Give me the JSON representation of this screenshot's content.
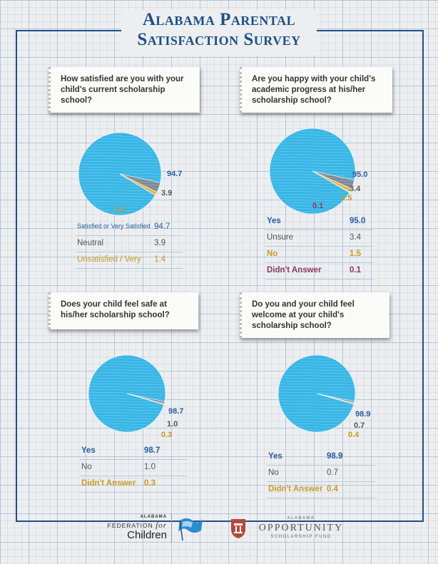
{
  "title": {
    "line1": "Alabama Parental",
    "line2": "Satisfaction Survey"
  },
  "colors": {
    "blue": "#2a5d9c",
    "gray": "#555555",
    "gold": "#c89a28",
    "maroon": "#8b3a62",
    "sky": "#38b6e6"
  },
  "chart_data": [
    {
      "type": "pie",
      "title": "How satisfied are you with your child's current scholarship school?",
      "categories": [
        "Satisfied or Very Satisfied",
        "Neutral",
        "Unsatisfied / Very"
      ],
      "values": [
        94.7,
        3.9,
        1.4
      ],
      "value_labels": [
        "94.7",
        "3.9",
        "1.4"
      ]
    },
    {
      "type": "pie",
      "title": "Are you happy with your child's academic progress at his/her scholarship school?",
      "categories": [
        "Yes",
        "Unsure",
        "No",
        "Didn't Answer"
      ],
      "values": [
        95.0,
        3.4,
        1.5,
        0.1
      ],
      "value_labels": [
        "95.0",
        "3.4",
        "1.5",
        "0.1"
      ]
    },
    {
      "type": "pie",
      "title": "Does your child feel safe at his/her scholarship school?",
      "categories": [
        "Yes",
        "No",
        "Didn't Answer"
      ],
      "values": [
        98.7,
        1.0,
        0.3
      ],
      "value_labels": [
        "98.7",
        "1.0",
        "0.3"
      ]
    },
    {
      "type": "pie",
      "title": "Do you and your child feel welcome at your child's scholarship school?",
      "categories": [
        "Yes",
        "No",
        "Didn't Answer"
      ],
      "values": [
        98.9,
        0.7,
        0.4
      ],
      "value_labels": [
        "98.9",
        "0.7",
        "0.4"
      ]
    }
  ],
  "footer": {
    "affc_small": "ALABAMA",
    "affc_main": "FEDERATION",
    "affc_for": "for",
    "affc_children": "Children",
    "aosf_small": "ALABAMA",
    "aosf_main": "OPPORTUNITY",
    "aosf_sub": "SCHOLARSHIP FUND"
  }
}
